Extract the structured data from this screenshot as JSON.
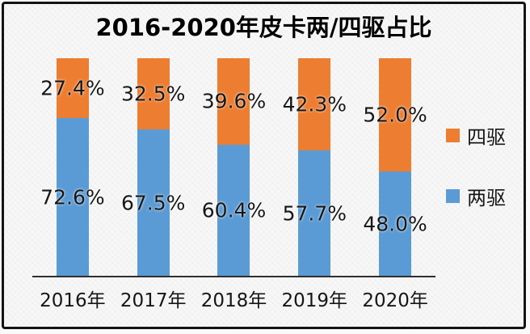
{
  "frame": {
    "border_color": "#141414",
    "background_color": "#f7f7f7"
  },
  "chart_data": {
    "type": "bar",
    "variant": "stacked-100-column",
    "title": "2016-2020年皮卡两/四驱占比",
    "categories": [
      "2016年",
      "2017年",
      "2018年",
      "2019年",
      "2020年"
    ],
    "series": [
      {
        "name": "两驱",
        "color": "#5B9BD5",
        "values": [
          72.6,
          67.5,
          60.4,
          57.7,
          48.0
        ],
        "labels": [
          "72.6%",
          "67.5%",
          "60.4%",
          "57.7%",
          "48.0%"
        ]
      },
      {
        "name": "四驱",
        "color": "#ED7D31",
        "values": [
          27.4,
          32.5,
          39.6,
          42.3,
          52.0
        ],
        "labels": [
          "27.4%",
          "32.5%",
          "39.6%",
          "42.3%",
          "52.0%"
        ]
      }
    ],
    "legend": {
      "position": "right",
      "items": [
        {
          "label": "四驱",
          "color": "#ED7D31"
        },
        {
          "label": "两驱",
          "color": "#5B9BD5"
        }
      ]
    },
    "ylim": [
      0,
      100
    ],
    "grid": false,
    "axis_line_color": "#2f2f2f",
    "data_label_color": "#161616"
  }
}
